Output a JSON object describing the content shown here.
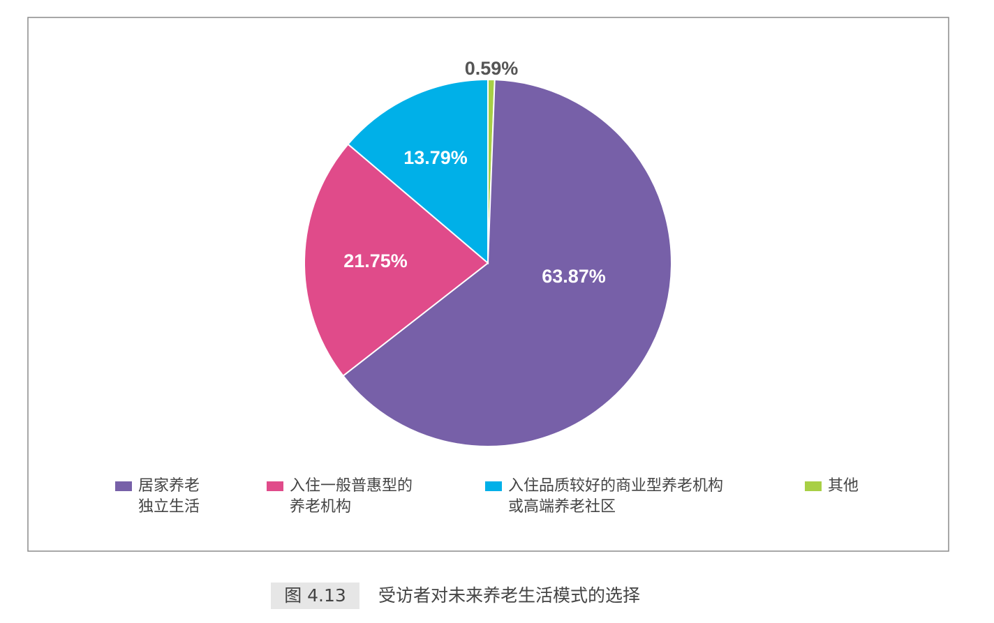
{
  "chart_data": {
    "type": "pie",
    "figure_number": "图 4.13",
    "title": "受访者对未来养老生活模式的选择",
    "series": [
      {
        "name": "居家养老\n独立生活",
        "color": "#7760a8",
        "values": [
          63.87
        ],
        "value_labels": [
          "63.87%"
        ]
      },
      {
        "name": "入住一般普惠型的\n养老机构",
        "color": "#e04b8a",
        "values": [
          21.75
        ],
        "value_labels": [
          "21.75%"
        ]
      },
      {
        "name": "入住品质较好的商业型养老机构\n或高端养老社区",
        "color": "#00b0e8",
        "values": [
          13.79
        ],
        "value_labels": [
          "13.79%"
        ]
      },
      {
        "name": "其他",
        "color": "#a8cf45",
        "values": [
          0.59
        ],
        "value_labels": [
          "0.59%"
        ]
      }
    ]
  }
}
